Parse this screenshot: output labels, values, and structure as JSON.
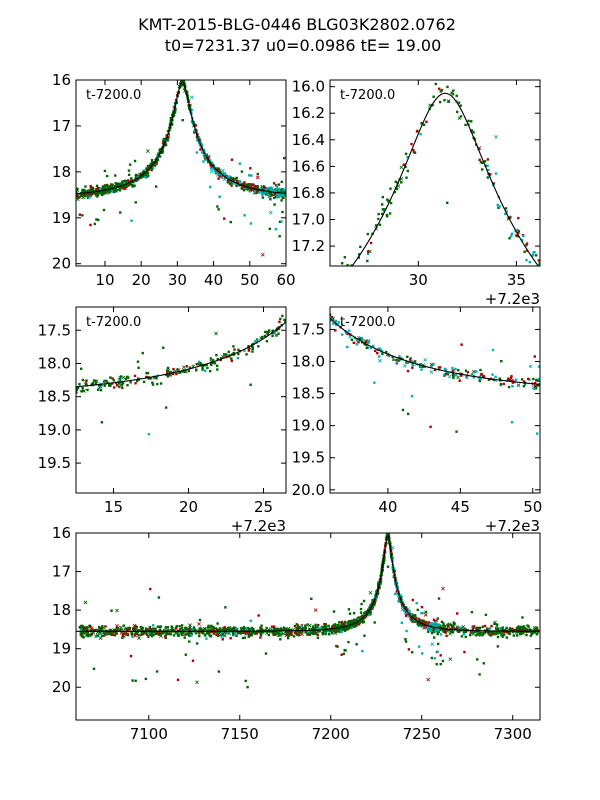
{
  "title_line1": "KMT-2015-BLG-0446 BLG03K2802.0762",
  "title_line2": "t0=7231.37 u0=0.0986 tE=  19.00",
  "event": {
    "t0": 7231.37,
    "u0": 0.0986,
    "tE": 19.0,
    "base_mag": 18.55,
    "peak_mag": 16.05
  },
  "colors": {
    "green": "#006400",
    "red": "#b00000",
    "cyan": "#00b0b0",
    "model": "#000000"
  },
  "chart_data": [
    {
      "id": "panel-full-top-left",
      "type": "scatter",
      "annotation": "t-7200.0",
      "offset": "",
      "xlim": [
        2,
        60
      ],
      "ylim": [
        20.05,
        16.0
      ],
      "x_shift": 7200,
      "xticks": [
        10,
        20,
        30,
        40,
        50,
        60
      ],
      "xtick_labels": [
        "10",
        "20",
        "30",
        "40",
        "50",
        "60"
      ],
      "yticks": [
        16,
        17,
        18,
        19,
        20
      ],
      "ytick_labels": [
        "16",
        "17",
        "18",
        "19",
        "20"
      ]
    },
    {
      "id": "panel-peak-top-right",
      "type": "scatter",
      "annotation": "t-7200.0",
      "offset": "+7.2e3",
      "xlim": [
        25.5,
        36.2
      ],
      "ylim": [
        17.35,
        15.95
      ],
      "x_shift": 7200,
      "xticks": [
        30,
        35
      ],
      "xtick_labels": [
        "30",
        "35"
      ],
      "yticks": [
        16.0,
        16.2,
        16.4,
        16.6,
        16.8,
        17.0,
        17.2
      ],
      "ytick_labels": [
        "16.0",
        "16.2",
        "16.4",
        "16.6",
        "16.8",
        "17.0",
        "17.2"
      ]
    },
    {
      "id": "panel-rise-mid-left",
      "type": "scatter",
      "annotation": "t-7200.0",
      "offset": "+7.2e3",
      "xlim": [
        12.5,
        26.5
      ],
      "ylim": [
        19.95,
        17.15
      ],
      "x_shift": 7200,
      "xticks": [
        15,
        20,
        25
      ],
      "xtick_labels": [
        "15",
        "20",
        "25"
      ],
      "yticks": [
        17.5,
        18.0,
        18.5,
        19.0,
        19.5
      ],
      "ytick_labels": [
        "17.5",
        "18.0",
        "18.5",
        "19.0",
        "19.5"
      ]
    },
    {
      "id": "panel-fall-mid-right",
      "type": "scatter",
      "annotation": "t-7200.0",
      "offset": "+7.2e3",
      "xlim": [
        36,
        50.5
      ],
      "ylim": [
        20.05,
        17.15
      ],
      "x_shift": 7200,
      "xticks": [
        40,
        45,
        50
      ],
      "xtick_labels": [
        "40",
        "45",
        "50"
      ],
      "yticks": [
        17.5,
        18.0,
        18.5,
        19.0,
        19.5,
        20.0
      ],
      "ytick_labels": [
        "17.5",
        "18.0",
        "18.5",
        "19.0",
        "19.5",
        "20.0"
      ]
    },
    {
      "id": "panel-season-bottom",
      "type": "scatter",
      "annotation": "",
      "offset": "",
      "xlim": [
        7060,
        7315
      ],
      "ylim": [
        20.85,
        16.0
      ],
      "x_shift": 0,
      "xticks": [
        7100,
        7150,
        7200,
        7250,
        7300
      ],
      "xtick_labels": [
        "7100",
        "7150",
        "7200",
        "7250",
        "7300"
      ],
      "yticks": [
        16,
        17,
        18,
        19,
        20
      ],
      "ytick_labels": [
        "16",
        "17",
        "18",
        "19",
        "20"
      ]
    }
  ]
}
